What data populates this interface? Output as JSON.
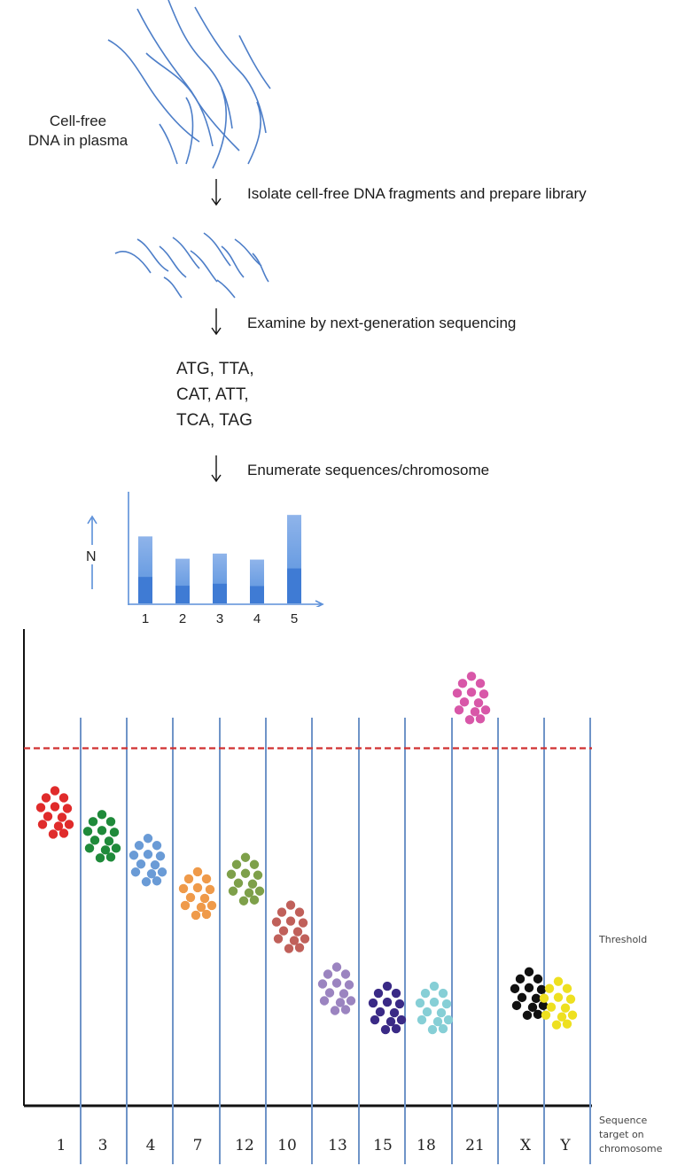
{
  "source_label_line1": "Cell-free",
  "source_label_line2": "DNA in plasma",
  "steps": [
    "Isolate cell-free DNA fragments and prepare library",
    "Examine by next-generation sequencing",
    "Enumerate sequences/chromosome"
  ],
  "codons": [
    "ATG, TTA,",
    "CAT,  ATT,",
    "TCA, TAG"
  ],
  "mini_chart": {
    "type": "bar",
    "ylabel": "N",
    "categories": [
      "1",
      "2",
      "3",
      "4",
      "5"
    ],
    "values": [
      78,
      52,
      58,
      51,
      103
    ],
    "ylim": [
      0,
      130
    ],
    "bar_color": "#5b8fd9"
  },
  "chart_data": {
    "type": "scatter",
    "threshold_label": "Threshold",
    "x_axis_label_lines": [
      "Sequence",
      "target on",
      "chromosome"
    ],
    "threshold_value": 0.75,
    "ylim": [
      0,
      1
    ],
    "categories": [
      "1",
      "3",
      "4",
      "7",
      "12",
      "10",
      "13",
      "15",
      "18",
      "21",
      "X",
      "Y"
    ],
    "series": [
      {
        "category": "1",
        "level": 0.62,
        "color": "#e02b2b"
      },
      {
        "category": "3",
        "level": 0.57,
        "color": "#1f8a3a"
      },
      {
        "category": "4",
        "level": 0.52,
        "color": "#6a9bd6"
      },
      {
        "category": "7",
        "level": 0.45,
        "color": "#ef9a4a"
      },
      {
        "category": "12",
        "level": 0.48,
        "color": "#7ea04a"
      },
      {
        "category": "10",
        "level": 0.38,
        "color": "#c0605a"
      },
      {
        "category": "13",
        "level": 0.25,
        "color": "#9b84c0"
      },
      {
        "category": "15",
        "level": 0.21,
        "color": "#3a2a86"
      },
      {
        "category": "18",
        "level": 0.21,
        "color": "#86cfd6"
      },
      {
        "category": "21",
        "level": 0.86,
        "color": "#d857a8"
      },
      {
        "category": "X",
        "level": 0.24,
        "color": "#111111"
      },
      {
        "category": "Y",
        "level": 0.22,
        "color": "#eee020"
      }
    ]
  }
}
